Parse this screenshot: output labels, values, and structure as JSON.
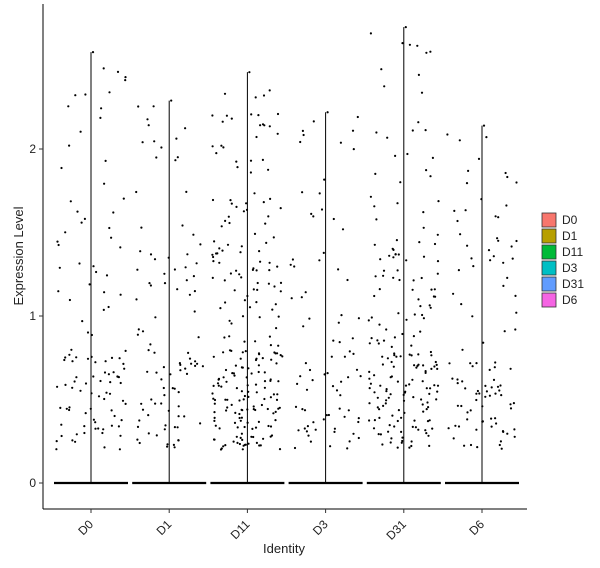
{
  "chart_data": {
    "type": "violin-jitter",
    "xlabel": "Identity",
    "ylabel": "Expression Level",
    "ylim": [
      -0.15,
      2.82
    ],
    "yticks": [
      0,
      1,
      2
    ],
    "grid": false,
    "legend_position": "right",
    "categories": [
      "D0",
      "D1",
      "D11",
      "D3",
      "D31",
      "D6"
    ],
    "series": [
      {
        "name": "D0",
        "color": "#F8766D",
        "max": 2.58,
        "nonzero": 110
      },
      {
        "name": "D1",
        "color": "#B79F00",
        "max": 2.29,
        "nonzero": 95
      },
      {
        "name": "D11",
        "color": "#00BA38",
        "max": 2.46,
        "nonzero": 230
      },
      {
        "name": "D3",
        "color": "#00BFC4",
        "max": 2.22,
        "nonzero": 80
      },
      {
        "name": "D31",
        "color": "#619CFF",
        "max": 2.73,
        "nonzero": 190
      },
      {
        "name": "D6",
        "color": "#F564E3",
        "max": 2.14,
        "nonzero": 100
      }
    ]
  }
}
